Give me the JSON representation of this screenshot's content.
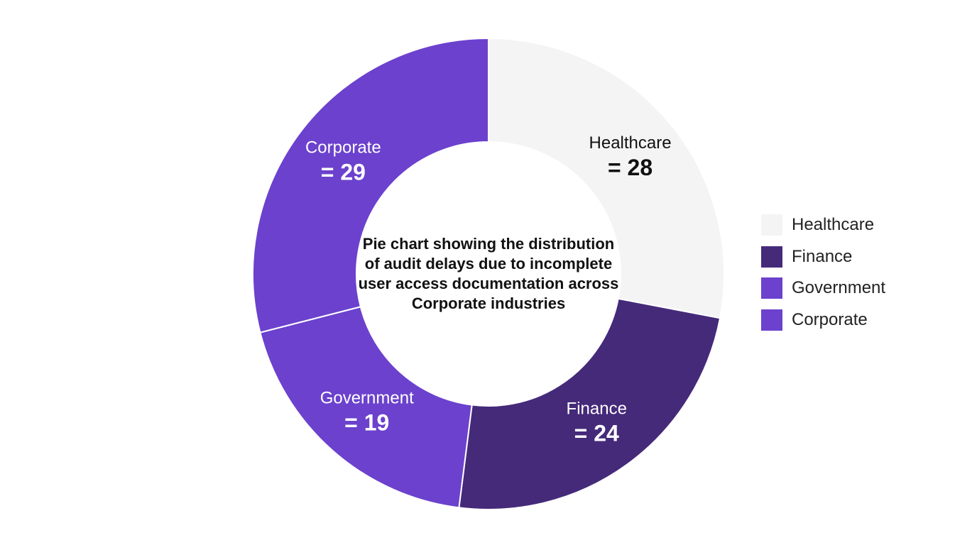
{
  "chart_data": {
    "type": "pie",
    "style": "donut",
    "title": "Pie chart showing the distribution of audit delays due to incomplete user access documentation across Corporate industries",
    "categories": [
      "Healthcare",
      "Finance",
      "Government",
      "Corporate"
    ],
    "values": [
      28,
      24,
      19,
      29
    ],
    "colors": [
      "#f4f4f4",
      "#452a7a",
      "#6b41cd",
      "#6b41cd"
    ],
    "slice_labels": [
      {
        "name": "Healthcare",
        "value_text": "= 28",
        "text_color": "#111111"
      },
      {
        "name": "Finance",
        "value_text": "= 24",
        "text_color": "#ffffff"
      },
      {
        "name": "Government",
        "value_text": "= 19",
        "text_color": "#ffffff"
      },
      {
        "name": "Corporate",
        "value_text": "= 29",
        "text_color": "#ffffff"
      }
    ],
    "legend": {
      "placement": "right",
      "entries": [
        "Healthcare",
        "Finance",
        "Government",
        "Corporate"
      ]
    }
  }
}
